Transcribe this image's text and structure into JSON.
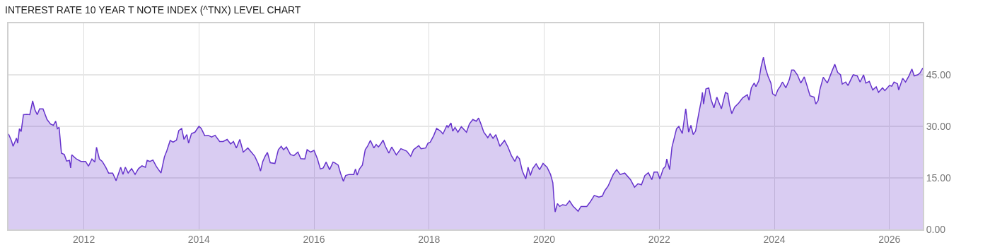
{
  "chart_data": {
    "type": "area",
    "title": "INTEREST RATE 10 YEAR T NOTE INDEX (^TNX) LEVEL CHART",
    "xlim": [
      2010.69,
      2026.58
    ],
    "xticks": [
      2012,
      2014,
      2016,
      2018,
      2020,
      2022,
      2024,
      2026
    ],
    "ylim": [
      0,
      60
    ],
    "yticks": [
      {
        "value": 0,
        "label": "0.00"
      },
      {
        "value": 15,
        "label": "15.00"
      },
      {
        "value": 30,
        "label": "30.00"
      },
      {
        "value": 45,
        "label": "45.00"
      }
    ],
    "grid": true,
    "marker": "none",
    "line_style": "solid",
    "series": [
      {
        "color": "#6633cc",
        "x": [
          2010.69,
          2010.74,
          2010.77,
          2010.83,
          2010.85,
          2010.88,
          2010.91,
          2010.95,
          2011.01,
          2011.06,
          2011.11,
          2011.15,
          2011.19,
          2011.23,
          2011.29,
          2011.36,
          2011.42,
          2011.47,
          2011.51,
          2011.54,
          2011.57,
          2011.61,
          2011.66,
          2011.7,
          2011.75,
          2011.77,
          2011.79,
          2011.87,
          2011.95,
          2012.03,
          2012.08,
          2012.14,
          2012.19,
          2012.22,
          2012.27,
          2012.32,
          2012.38,
          2012.43,
          2012.5,
          2012.56,
          2012.64,
          2012.68,
          2012.72,
          2012.77,
          2012.83,
          2012.89,
          2012.95,
          2013.01,
          2013.07,
          2013.1,
          2013.15,
          2013.2,
          2013.26,
          2013.34,
          2013.4,
          2013.44,
          2013.5,
          2013.55,
          2013.61,
          2013.65,
          2013.7,
          2013.74,
          2013.79,
          2013.82,
          2013.87,
          2013.93,
          2014.0,
          2014.04,
          2014.1,
          2014.16,
          2014.22,
          2014.28,
          2014.36,
          2014.42,
          2014.49,
          2014.55,
          2014.6,
          2014.65,
          2014.71,
          2014.77,
          2014.85,
          2014.91,
          2014.97,
          2015.03,
          2015.07,
          2015.11,
          2015.15,
          2015.19,
          2015.24,
          2015.32,
          2015.38,
          2015.43,
          2015.47,
          2015.52,
          2015.59,
          2015.65,
          2015.72,
          2015.77,
          2015.84,
          2015.88,
          2015.94,
          2016.0,
          2016.06,
          2016.11,
          2016.16,
          2016.21,
          2016.27,
          2016.33,
          2016.36,
          2016.42,
          2016.46,
          2016.51,
          2016.55,
          2016.61,
          2016.69,
          2016.72,
          2016.75,
          2016.79,
          2016.84,
          2016.89,
          2016.93,
          2016.98,
          2017.04,
          2017.08,
          2017.12,
          2017.16,
          2017.2,
          2017.24,
          2017.3,
          2017.35,
          2017.43,
          2017.51,
          2017.61,
          2017.68,
          2017.73,
          2017.82,
          2017.86,
          2017.94,
          2017.98,
          2018.02,
          2018.08,
          2018.13,
          2018.2,
          2018.24,
          2018.31,
          2018.33,
          2018.38,
          2018.41,
          2018.45,
          2018.5,
          2018.56,
          2018.65,
          2018.7,
          2018.76,
          2018.82,
          2018.86,
          2018.9,
          2018.95,
          2019.02,
          2019.06,
          2019.11,
          2019.16,
          2019.23,
          2019.31,
          2019.37,
          2019.43,
          2019.49,
          2019.53,
          2019.57,
          2019.62,
          2019.68,
          2019.72,
          2019.76,
          2019.8,
          2019.86,
          2019.92,
          2019.98,
          2020.05,
          2020.11,
          2020.15,
          2020.17,
          2020.19,
          2020.23,
          2020.27,
          2020.32,
          2020.38,
          2020.44,
          2020.5,
          2020.59,
          2020.64,
          2020.74,
          2020.8,
          2020.87,
          2020.95,
          2021.01,
          2021.05,
          2021.11,
          2021.2,
          2021.26,
          2021.32,
          2021.4,
          2021.5,
          2021.57,
          2021.63,
          2021.69,
          2021.75,
          2021.81,
          2021.87,
          2021.91,
          2021.97,
          2022.01,
          2022.07,
          2022.11,
          2022.13,
          2022.18,
          2022.22,
          2022.3,
          2022.34,
          2022.4,
          2022.46,
          2022.51,
          2022.55,
          2022.59,
          2022.63,
          2022.69,
          2022.73,
          2022.75,
          2022.77,
          2022.81,
          2022.86,
          2022.9,
          2022.95,
          2023.0,
          2023.08,
          2023.15,
          2023.19,
          2023.22,
          2023.26,
          2023.31,
          2023.38,
          2023.45,
          2023.53,
          2023.56,
          2023.6,
          2023.65,
          2023.68,
          2023.73,
          2023.77,
          2023.81,
          2023.85,
          2023.89,
          2023.94,
          2023.97,
          2024.02,
          2024.06,
          2024.1,
          2024.14,
          2024.2,
          2024.26,
          2024.3,
          2024.34,
          2024.4,
          2024.46,
          2024.52,
          2024.57,
          2024.62,
          2024.69,
          2024.72,
          2024.76,
          2024.79,
          2024.85,
          2024.92,
          2025.0,
          2025.05,
          2025.1,
          2025.15,
          2025.18,
          2025.24,
          2025.28,
          2025.34,
          2025.37,
          2025.44,
          2025.49,
          2025.55,
          2025.59,
          2025.65,
          2025.71,
          2025.77,
          2025.81,
          2025.88,
          2025.92,
          2026.0,
          2026.04,
          2026.08,
          2026.14,
          2026.16,
          2026.23,
          2026.28,
          2026.34,
          2026.39,
          2026.43,
          2026.49,
          2026.53,
          2026.58
        ],
        "values": [
          27.8,
          25.9,
          24.2,
          26.6,
          25.1,
          29.3,
          28.5,
          33.4,
          33.5,
          33.4,
          37.4,
          34.8,
          33.4,
          35.1,
          35.1,
          32.0,
          30.7,
          30.3,
          31.5,
          29.3,
          29.7,
          22.2,
          21.8,
          19.9,
          20.1,
          17.9,
          21.7,
          20.5,
          19.8,
          19.8,
          18.4,
          20.5,
          19.6,
          23.9,
          20.5,
          19.8,
          18.1,
          16.4,
          16.4,
          14.2,
          18.1,
          16.0,
          18.1,
          16.4,
          17.7,
          16.0,
          17.7,
          18.5,
          18.1,
          20.1,
          19.8,
          20.2,
          18.3,
          16.4,
          21.1,
          22.8,
          25.9,
          25.4,
          26.0,
          28.8,
          29.4,
          26.2,
          27.6,
          25.1,
          27.9,
          28.3,
          30.0,
          29.4,
          27.3,
          27.4,
          26.9,
          27.4,
          25.6,
          25.6,
          26.2,
          24.9,
          25.6,
          23.7,
          26.2,
          22.5,
          23.7,
          22.5,
          21.3,
          19.1,
          17.0,
          19.8,
          21.3,
          22.4,
          19.4,
          19.2,
          23.2,
          24.2,
          23.2,
          24.0,
          21.8,
          21.5,
          22.5,
          20.6,
          20.5,
          23.2,
          22.5,
          23.0,
          20.5,
          17.6,
          17.9,
          19.6,
          17.4,
          19.6,
          19.4,
          18.7,
          16.4,
          14.0,
          15.7,
          16.0,
          16.0,
          17.6,
          15.8,
          17.6,
          18.7,
          23.2,
          24.2,
          25.9,
          23.7,
          24.7,
          24.0,
          24.9,
          26.0,
          24.2,
          22.2,
          24.0,
          21.7,
          23.5,
          22.8,
          21.3,
          23.2,
          24.4,
          23.5,
          23.7,
          25.1,
          25.4,
          27.3,
          29.4,
          28.6,
          27.8,
          30.3,
          29.7,
          31.0,
          28.6,
          29.7,
          28.3,
          29.9,
          28.3,
          30.7,
          32.0,
          31.5,
          32.4,
          30.7,
          28.3,
          26.7,
          27.8,
          26.5,
          27.6,
          24.2,
          25.9,
          24.0,
          21.5,
          19.8,
          21.3,
          20.6,
          17.0,
          14.7,
          18.1,
          15.7,
          17.7,
          19.1,
          17.4,
          19.2,
          18.1,
          16.0,
          13.6,
          8.9,
          5.1,
          7.5,
          6.7,
          7.2,
          7.0,
          8.3,
          6.8,
          5.3,
          6.7,
          6.7,
          8.0,
          9.9,
          9.4,
          9.7,
          11.2,
          12.6,
          16.0,
          17.4,
          16.0,
          16.4,
          14.5,
          12.3,
          13.3,
          13.0,
          15.7,
          16.5,
          14.5,
          16.7,
          16.7,
          14.7,
          17.7,
          18.4,
          20.5,
          17.4,
          23.9,
          29.3,
          30.0,
          27.9,
          35.1,
          28.3,
          30.3,
          27.6,
          28.6,
          34.1,
          37.5,
          39.9,
          36.5,
          40.9,
          41.2,
          37.8,
          35.4,
          38.5,
          35.1,
          39.9,
          39.5,
          36.3,
          33.7,
          35.6,
          36.8,
          38.3,
          39.2,
          37.6,
          41.2,
          42.6,
          41.6,
          43.3,
          47.4,
          50.1,
          46.7,
          44.6,
          42.6,
          39.5,
          38.9,
          40.6,
          41.6,
          42.9,
          41.2,
          43.6,
          46.4,
          46.4,
          45.0,
          42.6,
          44.4,
          41.7,
          38.9,
          38.5,
          36.5,
          37.5,
          40.6,
          44.3,
          42.6,
          46.0,
          48.1,
          45.7,
          45.0,
          42.3,
          42.9,
          41.9,
          44.0,
          45.0,
          44.7,
          42.9,
          45.0,
          42.6,
          43.1,
          40.6,
          41.5,
          39.9,
          41.2,
          40.4,
          41.9,
          41.7,
          42.9,
          42.4,
          40.6,
          44.0,
          42.9,
          44.7,
          46.7,
          44.7,
          45.0,
          45.5,
          47.0
        ]
      }
    ]
  }
}
